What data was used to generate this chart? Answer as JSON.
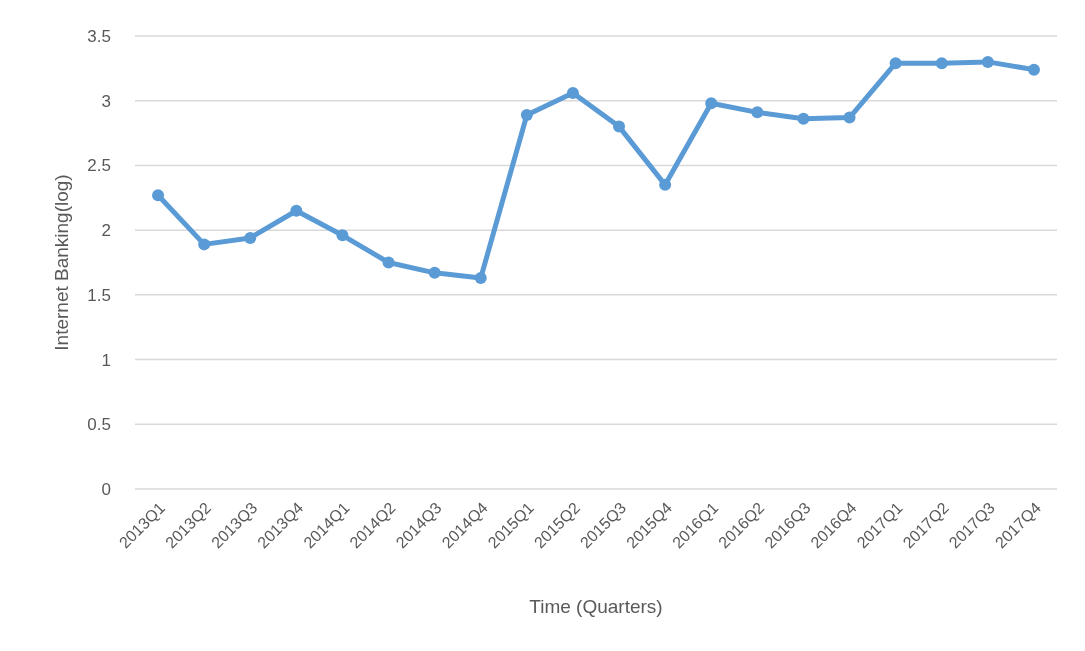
{
  "chart_data": {
    "type": "line",
    "xlabel": "Time (Quarters)",
    "ylabel": "Internet Banking(log)",
    "categories": [
      "2013Q1",
      "2013Q2",
      "2013Q3",
      "2013Q4",
      "2014Q1",
      "2014Q2",
      "2014Q3",
      "2014Q4",
      "2015Q1",
      "2015Q2",
      "2015Q3",
      "2015Q4",
      "2016Q1",
      "2016Q2",
      "2016Q3",
      "2016Q4",
      "2017Q1",
      "2017Q2",
      "2017Q3",
      "2017Q4"
    ],
    "series": [
      {
        "color": "#5b9bd5",
        "values": [
          2.27,
          1.89,
          1.94,
          2.15,
          1.96,
          1.75,
          1.67,
          1.63,
          2.89,
          3.06,
          2.8,
          2.35,
          2.98,
          2.91,
          2.86,
          2.87,
          3.29,
          3.29,
          3.3,
          3.24
        ]
      }
    ],
    "ylim": [
      0,
      3.5
    ],
    "yticks": [
      0,
      0.5,
      1,
      1.5,
      2,
      2.5,
      3,
      3.5
    ],
    "grid": "y",
    "marker": "circle",
    "line_style": "solid"
  }
}
